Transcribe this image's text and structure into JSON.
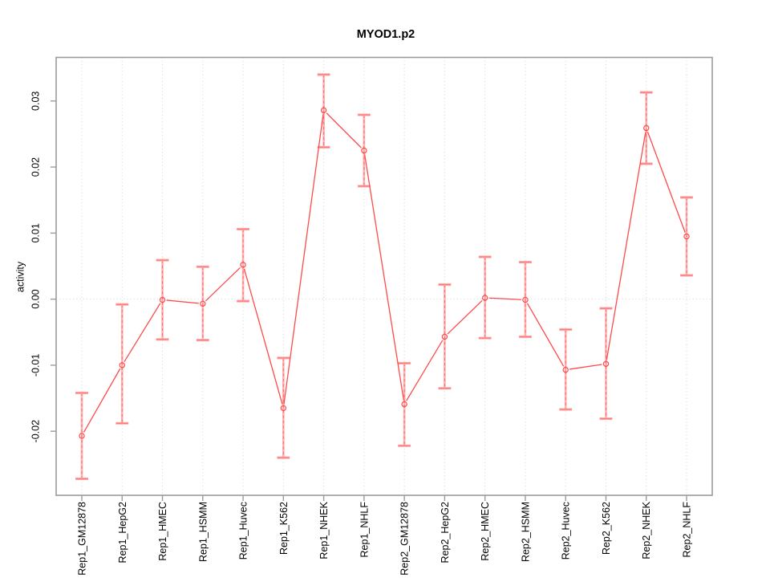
{
  "title": "MYOD1.p2",
  "chart_data": {
    "type": "line",
    "title": "MYOD1.p2",
    "xlabel": "",
    "ylabel": "activity",
    "legend_position": "none",
    "grid": "vertical dotted gridline at every category; dotted horizontal line at y=0",
    "point_style": "open-circle",
    "error_bars": true,
    "categories": [
      "Rep1_GM12878",
      "Rep1_HepG2",
      "Rep1_HMEC",
      "Rep1_HSMM",
      "Rep1_Huvec",
      "Rep1_K562",
      "Rep1_NHEK",
      "Rep1_NHLF",
      "Rep2_GM12878",
      "Rep2_HepG2",
      "Rep2_HMEC",
      "Rep2_HSMM",
      "Rep2_Huvec",
      "Rep2_K562",
      "Rep2_NHEK",
      "Rep2_NHLF"
    ],
    "series": [
      {
        "name": "activity",
        "values": [
          -0.0207,
          -0.01,
          -0.0001,
          -0.0007,
          0.0052,
          -0.0165,
          0.0286,
          0.0225,
          -0.0159,
          -0.0057,
          0.0002,
          -0.0001,
          -0.0107,
          -0.0098,
          0.0259,
          0.0095
        ],
        "ci_low": [
          -0.0272,
          -0.0188,
          -0.0061,
          -0.0062,
          -0.0003,
          -0.024,
          0.023,
          0.0171,
          -0.0222,
          -0.0135,
          -0.0059,
          -0.0057,
          -0.0167,
          -0.0181,
          0.0205,
          0.0036
        ],
        "ci_high": [
          -0.0142,
          -0.0008,
          0.0059,
          0.0049,
          0.0106,
          -0.0089,
          0.034,
          0.0279,
          -0.0097,
          0.0022,
          0.0064,
          0.0056,
          -0.0046,
          -0.0014,
          0.0313,
          0.0154
        ]
      }
    ],
    "ylim": [
      -0.0297,
      0.0366
    ],
    "yticks": [
      -0.02,
      -0.01,
      0,
      0.01,
      0.02,
      0.03
    ],
    "ytick_labels": [
      "-0.02",
      "-0.01",
      "0.00",
      "0.01",
      "0.02",
      "0.03"
    ],
    "zero_line": 0
  },
  "colors": {
    "background": "#ffffff",
    "series_line": "#ff4a4a",
    "point_stroke": "#ff4a4a",
    "error_bar_band": "#ffb0b0",
    "error_bar_dash": "#ff6a6a",
    "error_bar_cap": "#ff7a7a",
    "grid": "#dcdcdc",
    "box": "#9b9b9b",
    "text": "#000000"
  }
}
